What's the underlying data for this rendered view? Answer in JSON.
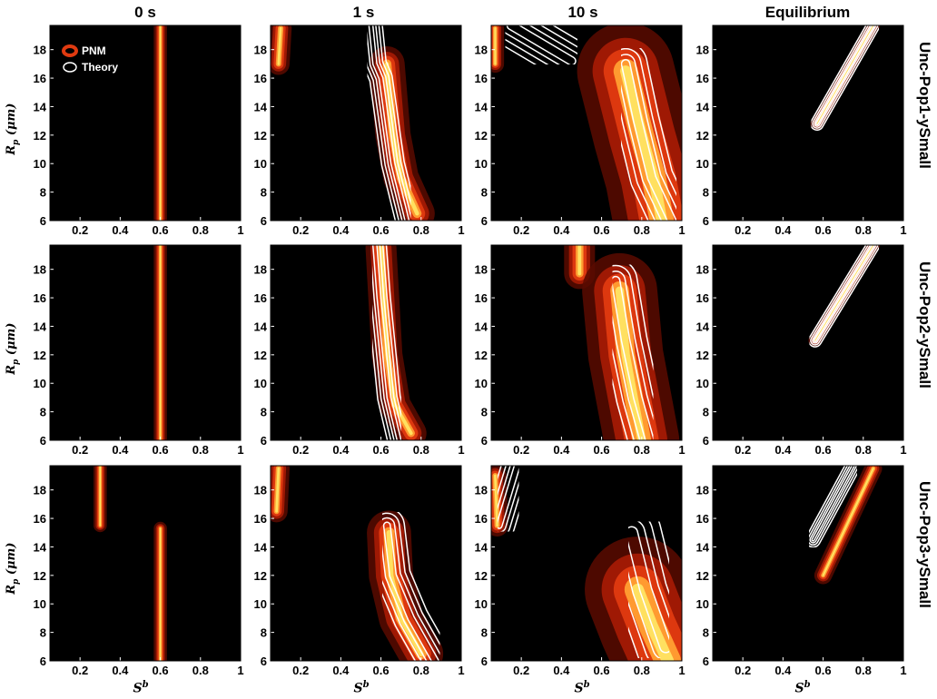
{
  "chart_data": {
    "type": "heatmap",
    "column_titles": [
      "0 s",
      "1 s",
      "10 s",
      "Equilibrium"
    ],
    "row_titles": [
      "Unc-Pop1-ySmall",
      "Unc-Pop2-ySmall",
      "Unc-Pop3-ySmall"
    ],
    "ylabel": "R",
    "ylabel_sub": "p",
    "ylabel_unit": " (μm)",
    "xlabel": "S",
    "xlabel_sup": "b",
    "xlim": [
      0.05,
      1
    ],
    "ylim": [
      6,
      19.7
    ],
    "xticks": [
      0.2,
      0.4,
      0.6,
      0.8,
      1
    ],
    "xtick_labels": [
      "0.2",
      "0.4",
      "0.6",
      "0.8",
      "1"
    ],
    "yticks": [
      6,
      8,
      10,
      12,
      14,
      16,
      18
    ],
    "ytick_labels": [
      "6",
      "8",
      "10",
      "12",
      "14",
      "16",
      "18"
    ],
    "legend": {
      "position": "top-left",
      "entries": [
        "PNM",
        "Theory"
      ]
    },
    "colors": {
      "background": "#000000",
      "heat_low": "#5a0a00",
      "heat_mid": "#e03a10",
      "heat_high": "#ffe060",
      "contour": "#ffffff"
    },
    "panels": [
      [
        {
          "heat": [
            {
              "x": [
                0.6,
                0.6
              ],
              "y": [
                6,
                19.7
              ],
              "w": 0.03
            }
          ],
          "theory": [
            {
              "x": [
                0.6,
                0.6
              ],
              "y": [
                6,
                19.7
              ],
              "w": 0.1
            }
          ]
        },
        {
          "heat": [
            {
              "x": [
                0.09,
                0.1
              ],
              "y": [
                17.0,
                19.5
              ],
              "w": 0.05
            },
            {
              "x": [
                0.63,
                0.66,
                0.7,
                0.78
              ],
              "y": [
                17.0,
                12.0,
                9.0,
                6.5
              ],
              "w": 0.08
            }
          ],
          "theory": [
            {
              "x": [
                0.55,
                0.57,
                0.6,
                0.66,
                0.73
              ],
              "y": [
                19.7,
                17.0,
                16.0,
                10.0,
                6.0
              ],
              "w": 0.12
            }
          ]
        },
        {
          "heat": [
            {
              "x": [
                0.07,
                0.07
              ],
              "y": [
                17.0,
                19.5
              ],
              "w": 0.04
            },
            {
              "x": [
                0.72,
                0.8,
                0.86,
                0.9
              ],
              "y": [
                16.5,
                12.0,
                9.0,
                6.0
              ],
              "w": 0.22
            }
          ],
          "theory": [
            {
              "x": [
                0.15,
                0.45
              ],
              "y": [
                19.7,
                17.2
              ],
              "w": 0.22
            },
            {
              "x": [
                0.72,
                0.78,
                0.85,
                0.95
              ],
              "y": [
                17.0,
                13.0,
                9.0,
                6.0
              ],
              "w": 0.22
            }
          ]
        },
        {
          "heat": [
            {
              "x": [
                0.57,
                0.85
              ],
              "y": [
                12.8,
                19.7
              ],
              "w": 0.03
            }
          ],
          "theory": [
            {
              "x": [
                0.57,
                0.85
              ],
              "y": [
                12.8,
                19.7
              ],
              "w": 0.07
            }
          ]
        }
      ],
      [
        {
          "heat": [
            {
              "x": [
                0.6,
                0.6
              ],
              "y": [
                6,
                19.7
              ],
              "w": 0.03
            }
          ],
          "theory": [
            {
              "x": [
                0.6,
                0.6
              ],
              "y": [
                6,
                19.7
              ],
              "w": 0.1
            }
          ]
        },
        {
          "heat": [
            {
              "x": [
                0.6,
                0.61,
                0.63,
                0.67,
                0.75
              ],
              "y": [
                19.5,
                17.0,
                12.0,
                8.5,
                6.5
              ],
              "w": 0.07
            }
          ],
          "theory": [
            {
              "x": [
                0.57,
                0.59,
                0.64,
                0.69
              ],
              "y": [
                19.7,
                16.0,
                9.0,
                6.0
              ],
              "w": 0.12
            }
          ]
        },
        {
          "heat": [
            {
              "x": [
                0.49,
                0.49
              ],
              "y": [
                17.7,
                19.7
              ],
              "w": 0.07
            },
            {
              "x": [
                0.69,
                0.72,
                0.76,
                0.8
              ],
              "y": [
                16.5,
                12.0,
                9.0,
                6.0
              ],
              "w": 0.17
            }
          ],
          "theory": [
            {
              "x": [
                0.48,
                0.48
              ],
              "y": [
                17.0,
                19.7
              ],
              "w": 0.14
            },
            {
              "x": [
                0.67,
                0.72,
                0.78,
                0.84
              ],
              "y": [
                17.2,
                13.0,
                9.0,
                6.0
              ],
              "w": 0.22
            }
          ]
        },
        {
          "heat": [
            {
              "x": [
                0.56,
                0.85
              ],
              "y": [
                13.0,
                19.7
              ],
              "w": 0.03
            }
          ],
          "theory": [
            {
              "x": [
                0.56,
                0.85
              ],
              "y": [
                13.0,
                19.7
              ],
              "w": 0.07
            }
          ]
        }
      ],
      [
        {
          "heat": [
            {
              "x": [
                0.3,
                0.3
              ],
              "y": [
                15.5,
                19.7
              ],
              "w": 0.03
            },
            {
              "x": [
                0.6,
                0.6
              ],
              "y": [
                6,
                15.3
              ],
              "w": 0.03
            }
          ],
          "theory": [
            {
              "x": [
                0.3,
                0.3
              ],
              "y": [
                14.8,
                19.7
              ],
              "w": 0.1
            },
            {
              "x": [
                0.6,
                0.6
              ],
              "y": [
                6,
                15.8
              ],
              "w": 0.1
            }
          ]
        },
        {
          "heat": [
            {
              "x": [
                0.08,
                0.09
              ],
              "y": [
                16.5,
                19.5
              ],
              "w": 0.05
            },
            {
              "x": [
                0.64,
                0.65,
                0.7,
                0.8
              ],
              "y": [
                15.0,
                12.0,
                9.0,
                6.5
              ],
              "w": 0.1
            }
          ],
          "theory": [
            {
              "x": [
                0.26,
                0.26
              ],
              "y": [
                15.2,
                19.7
              ],
              "w": 0.13
            },
            {
              "x": [
                0.63,
                0.66,
                0.75,
                0.87
              ],
              "y": [
                15.5,
                12.0,
                9.0,
                6.0
              ],
              "w": 0.18
            }
          ]
        },
        {
          "heat": [
            {
              "x": [
                0.08,
                0.07
              ],
              "y": [
                15.5,
                19.0
              ],
              "w": 0.05
            },
            {
              "x": [
                0.78,
                0.85,
                0.93
              ],
              "y": [
                11.0,
                8.5,
                6.0
              ],
              "w": 0.24
            }
          ],
          "theory": [
            {
              "x": [
                0.09,
                0.18
              ],
              "y": [
                15.5,
                19.7
              ],
              "w": 0.16
            },
            {
              "x": [
                0.75,
                0.82,
                0.92
              ],
              "y": [
                15.0,
                11.0,
                7.0
              ],
              "w": 0.3
            }
          ]
        },
        {
          "heat": [
            {
              "x": [
                0.6,
                0.85
              ],
              "y": [
                12.0,
                19.5
              ],
              "w": 0.04
            }
          ],
          "theory": [
            {
              "x": [
                0.55,
                0.75
              ],
              "y": [
                14.5,
                19.7
              ],
              "w": 0.08
            }
          ]
        }
      ]
    ]
  }
}
